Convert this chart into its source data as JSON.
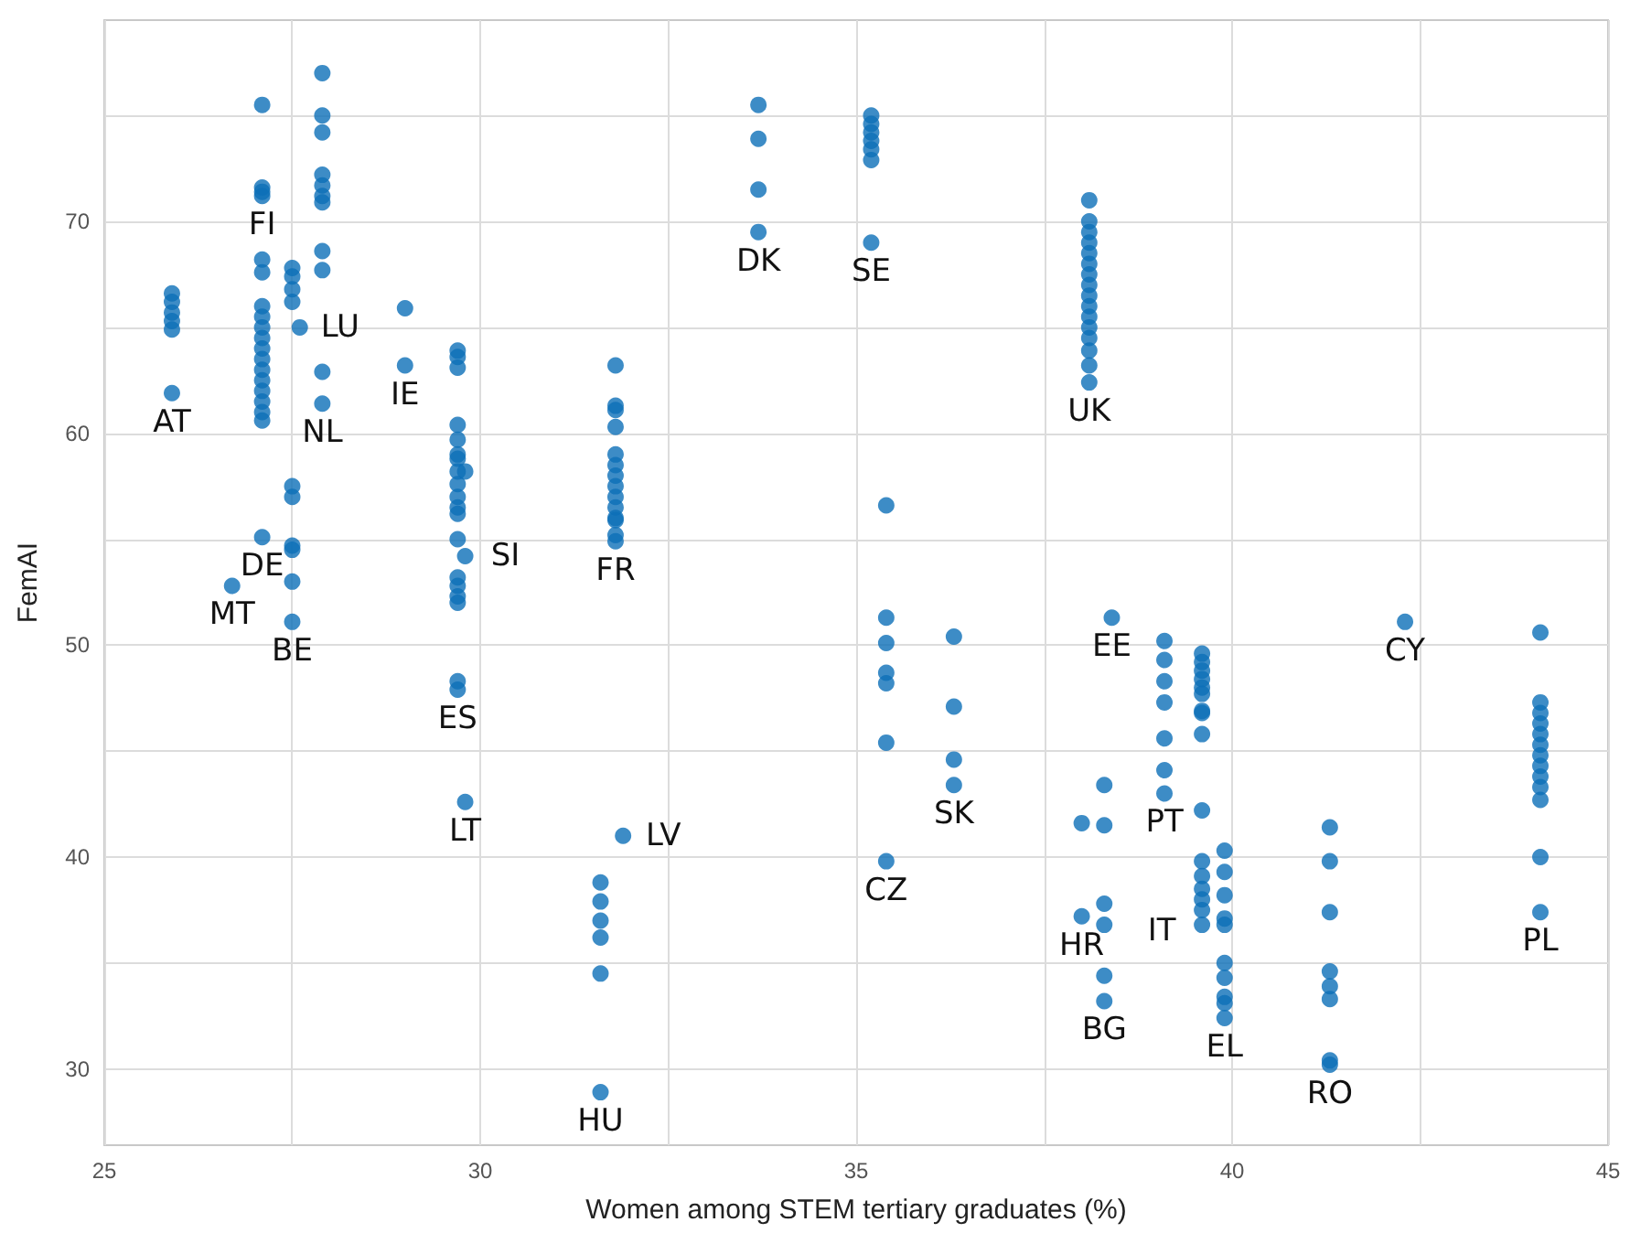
{
  "chart_data": {
    "type": "scatter",
    "xlabel": "Women among STEM tertiary graduates (%)",
    "ylabel": "FemAI",
    "xlim": [
      25,
      45
    ],
    "xticks": [
      25,
      {
        "value": 27.5,
        "label": null
      },
      30,
      {
        "value": 32.5,
        "label": null
      },
      35,
      {
        "value": 37.5,
        "label": null
      },
      40,
      {
        "value": 42.5,
        "label": null
      },
      45
    ],
    "ylim": [
      26.4,
      79.5
    ],
    "yticks": [
      30,
      {
        "value": 35,
        "label": null
      },
      40,
      {
        "value": 45,
        "label": null
      },
      50,
      {
        "value": 55,
        "label": null
      },
      60,
      {
        "value": 65,
        "label": null
      },
      70,
      {
        "value": 75,
        "label": null
      }
    ],
    "grid": true,
    "marker": "circle",
    "series": [
      {
        "color": "#0d6fb8",
        "x": [
          25.9,
          25.9,
          25.9,
          25.9,
          25.9,
          25.9,
          27.1,
          27.1,
          27.1,
          27.1,
          27.1,
          27.1,
          27.1,
          27.1,
          27.1,
          27.1,
          27.1,
          27.1,
          27.1,
          27.1,
          27.1,
          27.1,
          27.1,
          27.1,
          27.1,
          27.5,
          27.5,
          27.5,
          27.5,
          27.5,
          27.5,
          27.5,
          27.5,
          27.5,
          27.5,
          27.6,
          26.7,
          27.9,
          27.9,
          27.9,
          27.9,
          27.9,
          27.9,
          27.9,
          27.9,
          27.9,
          27.9,
          27.9,
          29.0,
          29.0,
          29.7,
          29.7,
          29.7,
          29.7,
          29.7,
          29.7,
          29.7,
          29.7,
          29.7,
          29.7,
          29.7,
          29.7,
          29.7,
          29.7,
          29.7,
          29.7,
          29.7,
          29.7,
          29.7,
          29.8,
          29.8,
          29.8,
          31.9,
          31.6,
          31.6,
          31.6,
          31.6,
          31.6,
          31.6,
          31.8,
          31.8,
          31.8,
          31.8,
          31.8,
          31.8,
          31.8,
          31.8,
          31.8,
          31.8,
          31.8,
          31.8,
          31.8,
          31.8,
          33.7,
          33.7,
          33.7,
          33.7,
          35.2,
          35.2,
          35.2,
          35.2,
          35.2,
          35.2,
          35.2,
          38.1,
          38.1,
          38.1,
          38.1,
          38.1,
          38.1,
          38.1,
          38.1,
          38.1,
          38.1,
          38.1,
          38.1,
          38.1,
          38.1,
          38.1,
          38.1,
          35.4,
          35.4,
          35.4,
          35.4,
          35.4,
          35.4,
          35.4,
          36.3,
          36.3,
          36.3,
          36.3,
          38.4,
          38.0,
          38.0,
          38.3,
          38.3,
          38.3,
          38.3,
          38.3,
          38.3,
          39.1,
          39.1,
          39.1,
          39.1,
          39.1,
          39.1,
          39.1,
          39.6,
          39.6,
          39.6,
          39.6,
          39.6,
          39.6,
          39.6,
          39.6,
          39.6,
          39.6,
          39.6,
          39.6,
          39.6,
          39.6,
          39.6,
          39.6,
          39.9,
          39.9,
          39.9,
          39.9,
          39.9,
          39.9,
          39.9,
          39.9,
          39.9,
          39.9,
          41.3,
          41.3,
          41.3,
          41.3,
          41.3,
          41.3,
          41.3,
          41.3,
          42.3,
          44.1,
          44.1,
          44.1,
          44.1,
          44.1,
          44.1,
          44.1,
          44.1,
          44.1,
          44.1,
          44.1,
          44.1,
          44.1
        ],
        "values": [
          66.6,
          66.2,
          65.7,
          65.3,
          64.9,
          61.9,
          75.5,
          71.6,
          71.4,
          71.2,
          68.2,
          67.6,
          66.0,
          65.5,
          65.0,
          64.5,
          64.0,
          63.5,
          63.0,
          62.5,
          62.0,
          61.5,
          61.0,
          60.6,
          55.1,
          67.8,
          67.4,
          66.8,
          66.2,
          57.5,
          57.0,
          54.7,
          54.5,
          53.0,
          51.1,
          65.0,
          52.8,
          77.0,
          75.0,
          74.2,
          72.2,
          71.7,
          71.2,
          70.9,
          68.6,
          67.7,
          62.9,
          61.4,
          65.9,
          63.2,
          63.9,
          63.6,
          63.1,
          60.4,
          59.7,
          59.0,
          58.8,
          58.2,
          57.6,
          57.0,
          56.5,
          56.2,
          55.0,
          53.2,
          52.8,
          52.3,
          52.0,
          48.3,
          47.9,
          58.2,
          54.2,
          42.6,
          41.0,
          38.8,
          37.9,
          37.0,
          36.2,
          34.5,
          28.9,
          63.2,
          61.3,
          61.1,
          60.3,
          59.0,
          58.5,
          58.0,
          57.5,
          57.0,
          56.5,
          56.0,
          55.9,
          55.2,
          54.9,
          75.5,
          73.9,
          71.5,
          69.5,
          75.0,
          74.6,
          74.2,
          73.8,
          73.4,
          72.9,
          69.0,
          71.0,
          70.0,
          69.5,
          69.0,
          68.5,
          68.0,
          67.5,
          67.0,
          66.5,
          66.0,
          65.5,
          65.0,
          64.5,
          63.9,
          63.2,
          62.4,
          56.6,
          51.3,
          50.1,
          48.7,
          48.2,
          45.4,
          39.8,
          50.4,
          47.1,
          44.6,
          43.4,
          51.3,
          41.6,
          37.2,
          43.4,
          41.5,
          37.8,
          36.8,
          34.4,
          33.2,
          50.2,
          49.3,
          48.3,
          47.3,
          45.6,
          44.1,
          43.0,
          49.6,
          49.2,
          48.8,
          48.4,
          48.0,
          47.7,
          46.9,
          46.8,
          45.8,
          42.2,
          39.8,
          39.1,
          38.5,
          38.0,
          37.5,
          36.8,
          40.3,
          39.3,
          38.2,
          37.1,
          36.8,
          35.0,
          34.3,
          33.4,
          33.1,
          32.4,
          41.4,
          39.8,
          37.4,
          34.6,
          33.9,
          33.3,
          30.4,
          30.2,
          51.1,
          50.6,
          47.3,
          46.8,
          46.3,
          45.8,
          45.3,
          44.8,
          44.3,
          43.8,
          43.3,
          42.7,
          40.0,
          37.4
        ]
      }
    ],
    "annotations": [
      {
        "text": "FI",
        "x": 27.1,
        "y": 71.2
      },
      {
        "text": "LU",
        "x": 27.6,
        "y": 65.0
      },
      {
        "text": "AT",
        "x": 25.9,
        "y": 61.9
      },
      {
        "text": "NL",
        "x": 27.9,
        "y": 61.4
      },
      {
        "text": "IE",
        "x": 29.0,
        "y": 63.2
      },
      {
        "text": "DE",
        "x": 27.1,
        "y": 55.1
      },
      {
        "text": "MT",
        "x": 26.7,
        "y": 52.8
      },
      {
        "text": "BE",
        "x": 27.5,
        "y": 51.1
      },
      {
        "text": "ES",
        "x": 29.7,
        "y": 47.9
      },
      {
        "text": "SI",
        "x": 29.8,
        "y": 54.2
      },
      {
        "text": "LT",
        "x": 29.8,
        "y": 42.6
      },
      {
        "text": "LV",
        "x": 31.9,
        "y": 41.0
      },
      {
        "text": "HU",
        "x": 31.6,
        "y": 28.9
      },
      {
        "text": "FR",
        "x": 31.8,
        "y": 54.9
      },
      {
        "text": "DK",
        "x": 33.7,
        "y": 69.5
      },
      {
        "text": "SE",
        "x": 35.2,
        "y": 69.0
      },
      {
        "text": "UK",
        "x": 38.1,
        "y": 62.4
      },
      {
        "text": "CZ",
        "x": 35.4,
        "y": 39.8
      },
      {
        "text": "SK",
        "x": 36.3,
        "y": 43.4
      },
      {
        "text": "EE",
        "x": 38.4,
        "y": 51.3
      },
      {
        "text": "HR",
        "x": 38.0,
        "y": 37.2
      },
      {
        "text": "BG",
        "x": 38.3,
        "y": 33.2
      },
      {
        "text": "PT",
        "x": 39.1,
        "y": 43.0
      },
      {
        "text": "IT",
        "x": 39.6,
        "y": 36.5
      },
      {
        "text": "EL",
        "x": 39.9,
        "y": 32.4
      },
      {
        "text": "RO",
        "x": 41.3,
        "y": 30.2
      },
      {
        "text": "CY",
        "x": 42.3,
        "y": 51.1
      },
      {
        "text": "PL",
        "x": 44.1,
        "y": 37.4
      }
    ]
  }
}
